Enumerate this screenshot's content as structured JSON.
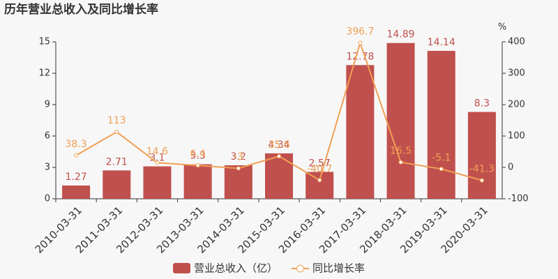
{
  "chart_data": {
    "type": "bar-line",
    "title": "历年营业总收入及同比增长率",
    "y2label": "%",
    "categories": [
      "2010-03-31",
      "2011-03-31",
      "2012-03-31",
      "2013-03-31",
      "2014-03-31",
      "2015-03-31",
      "2016-03-31",
      "2017-03-31",
      "2018-03-31",
      "2019-03-31",
      "2020-03-31"
    ],
    "series": [
      {
        "name": "营业总收入（亿）",
        "color": "#c0504d",
        "type": "bar",
        "values": [
          1.27,
          2.71,
          3.1,
          3.3,
          3.2,
          4.34,
          2.57,
          12.78,
          14.89,
          14.14,
          8.3
        ]
      },
      {
        "name": "同比增长率",
        "color": "#f0a055",
        "type": "line",
        "axis": "y2",
        "values": [
          38.3,
          113,
          14.6,
          6.4,
          -3.0,
          35.6,
          -40.7,
          396.7,
          16.5,
          -5.1,
          -41.3
        ]
      }
    ],
    "ylim": [
      0,
      15
    ],
    "yticks": [
      0,
      3,
      6,
      9,
      12,
      15
    ],
    "y2lim": [
      -100,
      400
    ],
    "y2ticks": [
      -100,
      0,
      100,
      200,
      300,
      400
    ]
  }
}
